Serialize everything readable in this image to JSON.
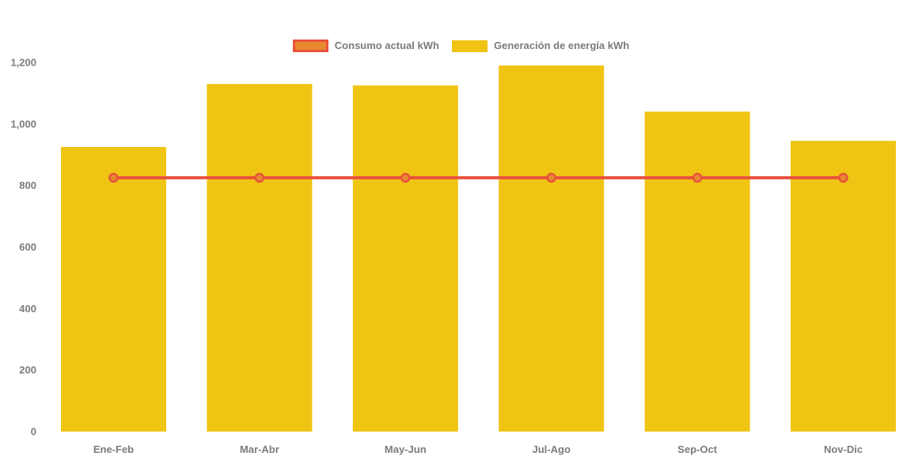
{
  "page": {
    "background": "#ffffff"
  },
  "legend": {
    "position": "top-center",
    "items": [
      {
        "label": "Consumo actual kWh",
        "swatch_fill": "#e78a2e",
        "swatch_border": "#e8523d"
      },
      {
        "label": "Generación de energía kWh",
        "swatch_fill": "#f0c413",
        "swatch_border": null
      }
    ]
  },
  "chart_data": {
    "type": "bar",
    "title": "",
    "xlabel": "",
    "ylabel": "",
    "categories": [
      "Ene-Feb",
      "Mar-Abr",
      "May-Jun",
      "Jul-Ago",
      "Sep-Oct",
      "Nov-Dic"
    ],
    "series": [
      {
        "name": "Consumo actual kWh",
        "type": "line",
        "values": [
          825,
          825,
          825,
          825,
          825,
          825
        ],
        "color": "#e8523d",
        "marker_fill": "#e78a2e",
        "marker_stroke": "#e8523d"
      },
      {
        "name": "Generación de energía kWh",
        "type": "bar",
        "values": [
          925,
          1130,
          1125,
          1190,
          1040,
          945
        ],
        "color": "#f0c413"
      }
    ],
    "ylim": [
      0,
      1200
    ],
    "y_ticks": [
      {
        "value": 0,
        "label": "0"
      },
      {
        "value": 200,
        "label": "200"
      },
      {
        "value": 400,
        "label": "400"
      },
      {
        "value": 600,
        "label": "600"
      },
      {
        "value": 800,
        "label": "800"
      },
      {
        "value": 1000,
        "label": "1,000"
      },
      {
        "value": 1200,
        "label": "1,200"
      }
    ],
    "grid": false,
    "legend_position": "top",
    "axis_text_color": "#7b7b7b"
  }
}
